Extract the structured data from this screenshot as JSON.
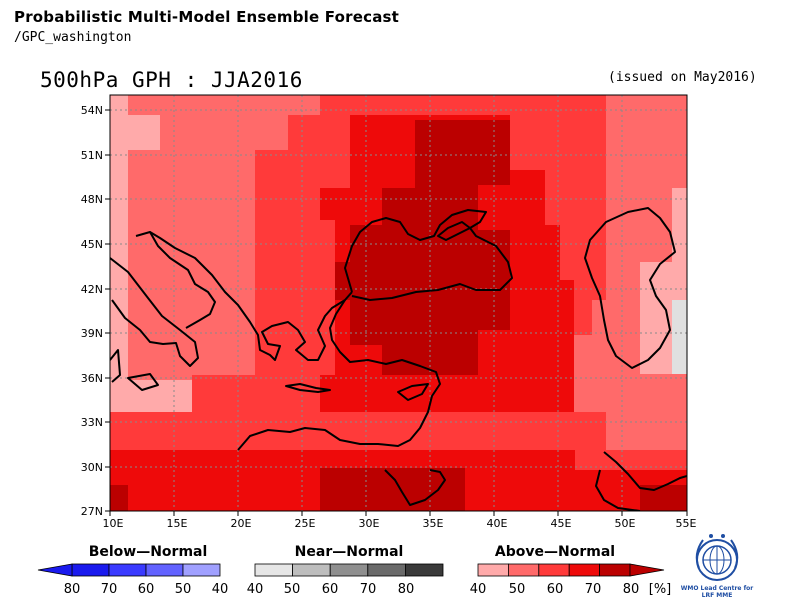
{
  "title": "Probabilistic Multi-Model Ensemble Forecast",
  "subtitle": "/GPC_washington",
  "variable_label": "500hPa GPH : JJA2016",
  "issued": "(issued on May2016)",
  "map": {
    "lon_labels": [
      "10E",
      "15E",
      "20E",
      "25E",
      "30E",
      "35E",
      "40E",
      "45E",
      "50E",
      "55E"
    ],
    "lat_labels": [
      "54N",
      "51N",
      "48N",
      "45N",
      "42N",
      "39N",
      "36N",
      "33N",
      "30N",
      "27N"
    ]
  },
  "legend": {
    "below": {
      "title": "Below—Normal",
      "labels": [
        "80",
        "70",
        "60",
        "50",
        "40"
      ],
      "colors": [
        "#0000bb",
        "#1a1aee",
        "#3a3aff",
        "#6262ff",
        "#a0a0ff"
      ]
    },
    "near": {
      "title": "Near—Normal",
      "labels": [
        "40",
        "50",
        "60",
        "70",
        "80"
      ],
      "colors": [
        "#e6e6e6",
        "#bdbdbd",
        "#8f8f8f",
        "#6a6a6a",
        "#3a3a3a"
      ]
    },
    "above": {
      "title": "Above—Normal",
      "labels": [
        "40",
        "50",
        "60",
        "70",
        "80"
      ],
      "colors": [
        "#ffaaaa",
        "#ff6a6a",
        "#ff3a3a",
        "#ee0a0a",
        "#bb0000"
      ]
    },
    "unit": "[%]"
  },
  "logo": {
    "caption_line1": "WMO Lead Centre for",
    "caption_line2": "LRF MME"
  },
  "colors": {
    "c1": "#ffaaaa",
    "c2": "#ff6a6a",
    "c3": "#ff3a3a",
    "c4": "#ee0a0a",
    "c5": "#bb0000",
    "near": "#e0e0e0"
  }
}
